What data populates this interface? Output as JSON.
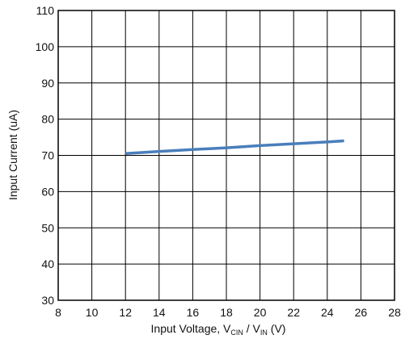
{
  "chart_data": {
    "type": "line",
    "title": "",
    "xlabel": {
      "prefix": "Input Voltage, V",
      "sub1": "CIN",
      "mid": " / V",
      "sub2": "IN",
      "suffix": " (V)"
    },
    "ylabel": "Input Current (uA)",
    "xlim": [
      8,
      28
    ],
    "ylim": [
      30,
      110
    ],
    "xticks": [
      "8",
      "10",
      "12",
      "14",
      "16",
      "18",
      "20",
      "22",
      "24",
      "26",
      "28"
    ],
    "yticks": [
      "30",
      "40",
      "50",
      "60",
      "70",
      "80",
      "90",
      "100",
      "110"
    ],
    "grid": true,
    "legend": "none",
    "series": [
      {
        "color": "#4a7ebb",
        "x": [
          12,
          14,
          16,
          18,
          20,
          22,
          24,
          25
        ],
        "y": [
          70.5,
          71.1,
          71.6,
          72.1,
          72.7,
          73.2,
          73.7,
          74.0
        ]
      }
    ]
  }
}
